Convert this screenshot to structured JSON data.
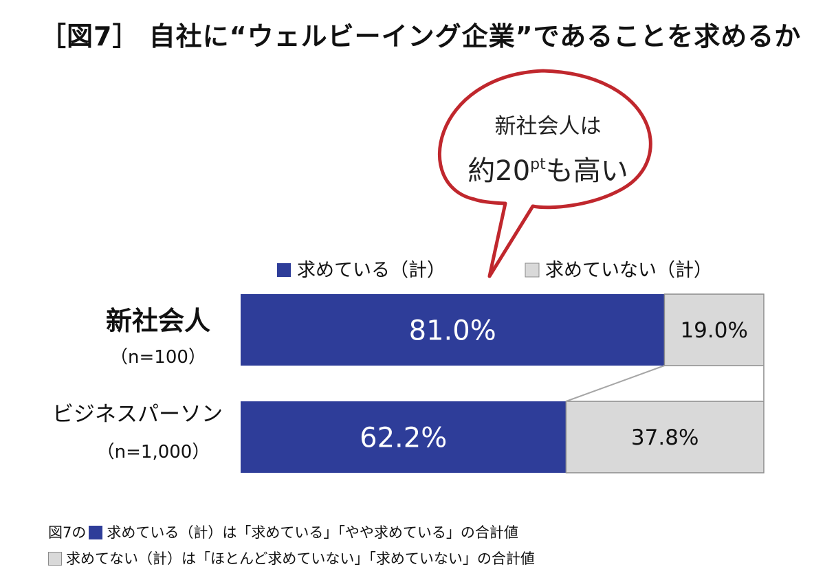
{
  "title": "［図7］ 自社に“ウェルビーイング企業”であることを求めるか",
  "callout": {
    "line1": "新社会人は",
    "line2_main": "約20",
    "line2_sup": "pt",
    "line2_end": "も高い"
  },
  "colors": {
    "seek": "#2e3d99",
    "not_seek": "#d9d9d9",
    "callout_border": "#c0272d",
    "connector": "#a6a6a6"
  },
  "chart_data": {
    "type": "bar",
    "orientation": "horizontal",
    "stacked": "100%",
    "categories": [
      {
        "label": "新社会人",
        "sublabel": "（n=100）",
        "bold": true
      },
      {
        "label": "ビジネスパーソン",
        "sublabel": "（n=1,000）",
        "bold": false
      }
    ],
    "series": [
      {
        "name": "求めている（計）",
        "values": [
          81.0,
          62.2
        ],
        "labels": [
          "81.0%",
          "62.2%"
        ]
      },
      {
        "name": "求めていない（計）",
        "values": [
          19.0,
          37.8
        ],
        "labels": [
          "19.0%",
          "37.8%"
        ]
      }
    ],
    "xlim": [
      0,
      100
    ],
    "legend": "top"
  },
  "footnotes": {
    "line1_pre": "図7の",
    "line1_text": "求めている（計）は「求めている」「やや求めている」の合計値",
    "line2_text": "求めてない（計）は「ほとんど求めていない」「求めていない」の合計値"
  }
}
